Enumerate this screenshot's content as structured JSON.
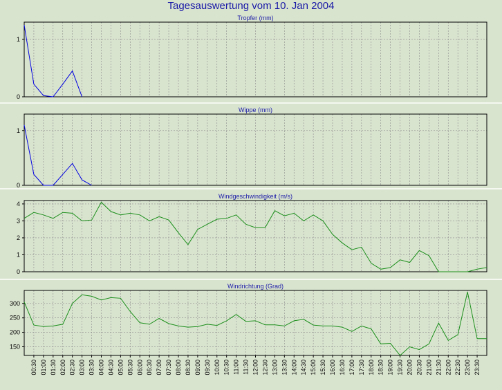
{
  "title": "Tagesauswertung vom 10. Jan 2004",
  "x_labels": [
    "00:30",
    "01:00",
    "01:30",
    "02:00",
    "02:30",
    "03:00",
    "03:30",
    "04:00",
    "04:30",
    "05:00",
    "05:30",
    "06:00",
    "06:30",
    "07:00",
    "07:30",
    "08:00",
    "08:30",
    "09:00",
    "09:30",
    "10:00",
    "10:30",
    "11:00",
    "11:30",
    "12:00",
    "12:30",
    "13:00",
    "13:30",
    "14:00",
    "14:30",
    "15:00",
    "15:30",
    "16:00",
    "16:30",
    "17:00",
    "17:30",
    "18:00",
    "18:30",
    "19:00",
    "19:30",
    "20:00",
    "20:30",
    "21:00",
    "21:30",
    "22:00",
    "22:30",
    "23:00",
    "23:30"
  ],
  "colors": {
    "background": "#d9e4cf",
    "title": "#1a1aa6",
    "rain": "#0000e0",
    "wind": "#1b8f1b",
    "grid": "#8a8a8a",
    "frame": "#000000"
  },
  "chart_data": [
    {
      "type": "line",
      "title": "Tropfer (mm)",
      "ylim": [
        0,
        1.3
      ],
      "yticks": [
        0,
        1
      ],
      "x": [
        "00:00",
        "00:30",
        "01:00",
        "01:30",
        "02:00",
        "02:30",
        "03:00"
      ],
      "values": [
        1.25,
        0.22,
        0.02,
        0.0,
        0.22,
        0.45,
        0.0
      ],
      "color": "rain"
    },
    {
      "type": "line",
      "title": "Wippe (mm)",
      "ylim": [
        0,
        1.3
      ],
      "yticks": [
        0,
        1
      ],
      "x": [
        "00:00",
        "00:30",
        "01:00",
        "01:30",
        "02:00",
        "02:30",
        "03:00",
        "03:30"
      ],
      "values": [
        1.1,
        0.2,
        0.0,
        0.0,
        0.2,
        0.4,
        0.1,
        0.0
      ],
      "color": "rain"
    },
    {
      "type": "line",
      "title": "Windgeschwindigkeit (m/s)",
      "ylim": [
        0,
        4.2
      ],
      "yticks": [
        0,
        1,
        2,
        3,
        4
      ],
      "x": [
        "00:00",
        "00:30",
        "01:00",
        "01:30",
        "02:00",
        "02:30",
        "03:00",
        "03:30",
        "04:00",
        "04:30",
        "05:00",
        "05:30",
        "06:00",
        "06:30",
        "07:00",
        "07:30",
        "08:00",
        "08:30",
        "09:00",
        "09:30",
        "10:00",
        "10:30",
        "11:00",
        "11:30",
        "12:00",
        "12:30",
        "13:00",
        "13:30",
        "14:00",
        "14:30",
        "15:00",
        "15:30",
        "16:00",
        "16:30",
        "17:00",
        "17:30",
        "18:00",
        "18:30",
        "19:00",
        "19:30",
        "20:00",
        "20:30",
        "21:00",
        "21:30",
        "22:00",
        "22:30",
        "23:00",
        "23:30",
        "24:00"
      ],
      "values": [
        3.15,
        3.5,
        3.35,
        3.15,
        3.5,
        3.45,
        3.0,
        3.05,
        4.1,
        3.55,
        3.35,
        3.45,
        3.35,
        3.0,
        3.25,
        3.05,
        2.3,
        1.6,
        2.5,
        2.8,
        3.1,
        3.15,
        3.35,
        2.8,
        2.6,
        2.6,
        3.6,
        3.3,
        3.45,
        3.0,
        3.35,
        3.0,
        2.2,
        1.7,
        1.3,
        1.45,
        0.5,
        0.15,
        0.25,
        0.7,
        0.55,
        1.25,
        0.95,
        0.0,
        0.0,
        0.0,
        0.0,
        0.15,
        0.25
      ],
      "color": "wind"
    },
    {
      "type": "line",
      "title": "Windrichtung (Grad)",
      "ylim": [
        120,
        345
      ],
      "yticks": [
        150,
        200,
        250,
        300
      ],
      "x": [
        "00:00",
        "00:30",
        "01:00",
        "01:30",
        "02:00",
        "02:30",
        "03:00",
        "03:30",
        "04:00",
        "04:30",
        "05:00",
        "05:30",
        "06:00",
        "06:30",
        "07:00",
        "07:30",
        "08:00",
        "08:30",
        "09:00",
        "09:30",
        "10:00",
        "10:30",
        "11:00",
        "11:30",
        "12:00",
        "12:30",
        "13:00",
        "13:30",
        "14:00",
        "14:30",
        "15:00",
        "15:30",
        "16:00",
        "16:30",
        "17:00",
        "17:30",
        "18:00",
        "18:30",
        "19:00",
        "19:30",
        "20:00",
        "20:30",
        "21:00",
        "21:30",
        "22:00",
        "22:30",
        "23:00",
        "23:30",
        "24:00"
      ],
      "values": [
        305,
        225,
        220,
        222,
        228,
        300,
        330,
        325,
        312,
        320,
        318,
        272,
        233,
        228,
        248,
        230,
        222,
        218,
        220,
        228,
        224,
        240,
        262,
        238,
        240,
        226,
        226,
        222,
        240,
        245,
        225,
        222,
        222,
        218,
        203,
        222,
        212,
        160,
        162,
        120,
        150,
        140,
        160,
        232,
        172,
        192,
        340,
        178,
        178
      ],
      "color": "wind"
    }
  ]
}
